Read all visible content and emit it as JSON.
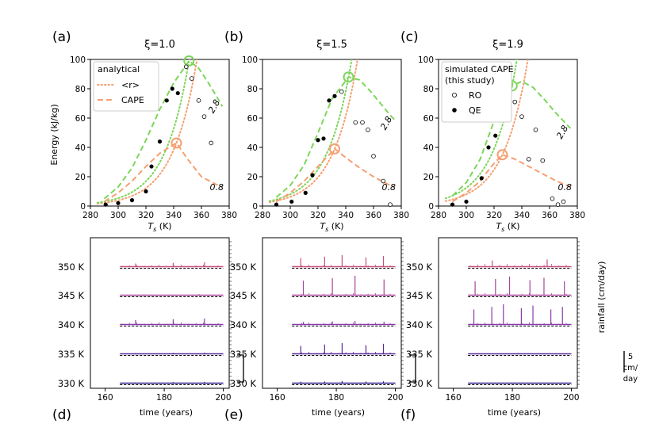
{
  "chart_data": {
    "type": "scatter",
    "ylabel": "Energy (kJ/kg)",
    "xlabel": "T_s (K)",
    "xlim": [
      280,
      380
    ],
    "ylim": [
      0,
      100
    ],
    "xticks": [
      "280",
      "300",
      "320",
      "340",
      "360",
      "380"
    ],
    "yticks": [
      "0",
      "20",
      "40",
      "60",
      "80",
      "100"
    ],
    "legend_analytical": {
      "title": "analytical",
      "r": "<r>",
      "cape": "CAPE"
    },
    "legend_simulated": {
      "title1": "simulated CAPE",
      "title2": "(this study)",
      "ro": "RO",
      "qe": "QE"
    },
    "curve_label_green": "2.8",
    "curve_label_orange": "0.8",
    "colors": {
      "green": "#7dd65a",
      "orange": "#f5a072",
      "black": "#000000"
    },
    "panels": [
      {
        "label": "(a)",
        "xi": "ξ=1.0",
        "qe": [
          [
            291,
            1
          ],
          [
            300,
            2
          ],
          [
            310,
            4
          ],
          [
            320,
            10
          ],
          [
            324,
            27
          ],
          [
            330,
            44
          ],
          [
            335,
            72
          ],
          [
            339,
            80
          ],
          [
            343,
            77
          ]
        ],
        "ro": [
          [
            349,
            95
          ],
          [
            353,
            87
          ],
          [
            358,
            72
          ],
          [
            362,
            61
          ],
          [
            367,
            43
          ]
        ],
        "circle_orange": [
          342,
          43
        ],
        "circle_green": [
          351,
          99
        ],
        "r_orange_peak": 342,
        "r_green_peak": 351,
        "cape_orange": [
          [
            290,
            3
          ],
          [
            300,
            9
          ],
          [
            310,
            17
          ],
          [
            320,
            27
          ],
          [
            330,
            36
          ],
          [
            342,
            43
          ],
          [
            350,
            32
          ],
          [
            360,
            20
          ],
          [
            370,
            15
          ],
          [
            375,
            13
          ]
        ],
        "cape_green": [
          [
            290,
            5
          ],
          [
            300,
            13
          ],
          [
            310,
            26
          ],
          [
            320,
            45
          ],
          [
            330,
            66
          ],
          [
            340,
            84
          ],
          [
            351,
            99
          ],
          [
            358,
            94
          ],
          [
            365,
            84
          ],
          [
            372,
            73
          ],
          [
            375,
            68
          ]
        ],
        "show_analytical_legend": true,
        "show_sim_legend": false
      },
      {
        "label": "(b)",
        "xi": "ξ=1.5",
        "qe": [
          [
            290,
            1
          ],
          [
            301,
            3
          ],
          [
            311,
            9
          ],
          [
            316,
            21
          ],
          [
            320,
            45
          ],
          [
            324,
            46
          ],
          [
            328,
            72
          ],
          [
            332,
            75
          ]
        ],
        "ro": [
          [
            337,
            78
          ],
          [
            347,
            57
          ],
          [
            352,
            57
          ],
          [
            356,
            52
          ],
          [
            360,
            34
          ],
          [
            367,
            17
          ],
          [
            372,
            1
          ]
        ],
        "circle_orange": [
          332,
          39
        ],
        "circle_green": [
          342,
          88
        ],
        "r_orange_peak": 332,
        "r_green_peak": 342,
        "cape_orange": [
          [
            290,
            3
          ],
          [
            300,
            9
          ],
          [
            310,
            17
          ],
          [
            320,
            27
          ],
          [
            332,
            39
          ],
          [
            340,
            33
          ],
          [
            350,
            26
          ],
          [
            360,
            20
          ],
          [
            370,
            15
          ],
          [
            375,
            13
          ]
        ],
        "cape_green": [
          [
            290,
            6
          ],
          [
            300,
            14
          ],
          [
            310,
            28
          ],
          [
            320,
            50
          ],
          [
            330,
            73
          ],
          [
            342,
            88
          ],
          [
            350,
            86
          ],
          [
            358,
            78
          ],
          [
            365,
            70
          ],
          [
            372,
            62
          ],
          [
            375,
            59
          ]
        ],
        "show_analytical_legend": false,
        "show_sim_legend": false
      },
      {
        "label": "(c)",
        "xi": "ξ=1.9",
        "qe": [
          [
            290,
            1
          ],
          [
            300,
            3
          ],
          [
            311,
            19
          ],
          [
            316,
            40
          ],
          [
            321,
            48
          ],
          [
            326,
            68
          ],
          [
            331,
            71
          ]
        ],
        "ro": [
          [
            335,
            71
          ],
          [
            340,
            61
          ],
          [
            345,
            32
          ],
          [
            350,
            52
          ],
          [
            355,
            31
          ],
          [
            362,
            5
          ],
          [
            366,
            1
          ],
          [
            370,
            3
          ]
        ],
        "circle_orange": [
          326,
          35
        ],
        "circle_green": [
          333,
          82
        ],
        "r_orange_peak": 326,
        "r_green_peak": 333,
        "cape_orange": [
          [
            290,
            3
          ],
          [
            300,
            9
          ],
          [
            310,
            17
          ],
          [
            318,
            27
          ],
          [
            326,
            35
          ],
          [
            335,
            32
          ],
          [
            345,
            27
          ],
          [
            355,
            22
          ],
          [
            365,
            17
          ],
          [
            375,
            13
          ]
        ],
        "cape_green": [
          [
            290,
            7
          ],
          [
            300,
            16
          ],
          [
            310,
            32
          ],
          [
            320,
            58
          ],
          [
            333,
            82
          ],
          [
            340,
            85
          ],
          [
            348,
            81
          ],
          [
            356,
            73
          ],
          [
            364,
            64
          ],
          [
            372,
            56
          ],
          [
            375,
            53
          ]
        ],
        "show_analytical_legend": false,
        "show_sim_legend": true
      }
    ],
    "rainfall": {
      "xlabel": "time (years)",
      "xticks": [
        "160",
        "180",
        "200"
      ],
      "xlim": [
        155,
        202
      ],
      "right_label": "rainfall (cm/day)",
      "scale_label_1": "5",
      "scale_label_2": "cm/",
      "scale_label_3": "day",
      "rows": [
        "350 K",
        "345 K",
        "340 K",
        "335 K",
        "330 K"
      ],
      "row_colors": [
        "#c84f7e",
        "#a8449a",
        "#8b3aab",
        "#5a2a9a",
        "#30208a"
      ],
      "panels": [
        {
          "label": "(d)",
          "spikes": [
            [
              3,
              2,
              0.6,
              0.3,
              0
            ],
            [
              2,
              1,
              0.2,
              0.1,
              0
            ],
            [
              3,
              2,
              0.8,
              0.3,
              0
            ],
            [
              3,
              2,
              0.2,
              0.1,
              0
            ],
            [
              3,
              1,
              0.2,
              0.1,
              0
            ]
          ]
        },
        {
          "label": "(e)",
          "spikes": [
            [
              5,
              3,
              1.5,
              0.3,
              0
            ],
            [
              4,
              3,
              2.5,
              0.3,
              0
            ],
            [
              4,
              3,
              0.5,
              0.3,
              0
            ],
            [
              5,
              3,
              1.4,
              0.3,
              0
            ],
            [
              5,
              3,
              0.3,
              0.1,
              0
            ]
          ]
        },
        {
          "label": "(f)",
          "spikes": [
            [
              2,
              2,
              1.1,
              0.4,
              0
            ],
            [
              6,
              3,
              2.4,
              0.3,
              0
            ],
            [
              7,
              3,
              2.6,
              0.3,
              0
            ],
            [
              1,
              2,
              0.2,
              0.1,
              0
            ],
            [
              2,
              2,
              0.1,
              0.1,
              0
            ]
          ]
        }
      ]
    }
  }
}
